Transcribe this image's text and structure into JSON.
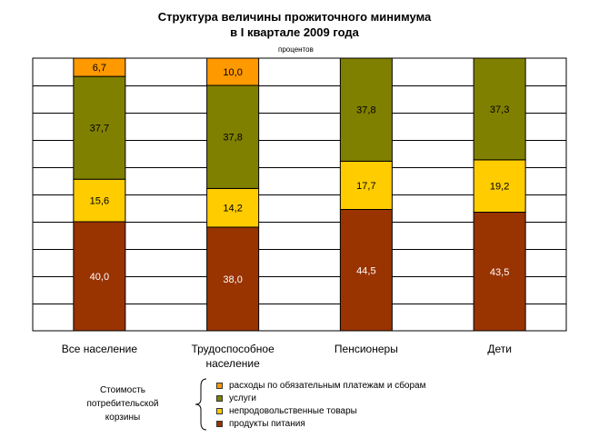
{
  "chart_data": {
    "type": "bar",
    "stacked": true,
    "title": "Структура величины прожиточного минимума",
    "subtitle": "в  I квартале 2009 года",
    "units": "процентов",
    "ylim": [
      0,
      100
    ],
    "grid": true,
    "legend_position": "bottom",
    "legend_group_label": [
      "Стоимость",
      "потребительской",
      "корзины"
    ],
    "categories": [
      [
        "Все население"
      ],
      [
        "Трудоспособное",
        "население"
      ],
      [
        "Пенсионеры"
      ],
      [
        "Дети"
      ]
    ],
    "series": [
      {
        "name": "продукты питания",
        "color": "#993300",
        "values": [
          40.0,
          38.0,
          44.5,
          43.5
        ],
        "labels": [
          "40,0",
          "38,0",
          "44,5",
          "43,5"
        ]
      },
      {
        "name": "непродовольственные товары",
        "color": "#FFCC00",
        "values": [
          15.6,
          14.2,
          17.7,
          19.2
        ],
        "labels": [
          "15,6",
          "14,2",
          "17,7",
          "19,2"
        ]
      },
      {
        "name": "услуги",
        "color": "#808000",
        "values": [
          37.7,
          37.8,
          37.8,
          37.3
        ],
        "labels": [
          "37,7",
          "37,8",
          "37,8",
          "37,3"
        ]
      },
      {
        "name": "расходы по обязательным платежам и сборам",
        "color": "#FF9900",
        "values": [
          6.7,
          10.0,
          0,
          0
        ],
        "labels": [
          "6,7",
          "10,0",
          "",
          ""
        ]
      }
    ],
    "legend_order": [
      3,
      2,
      1,
      0
    ]
  }
}
